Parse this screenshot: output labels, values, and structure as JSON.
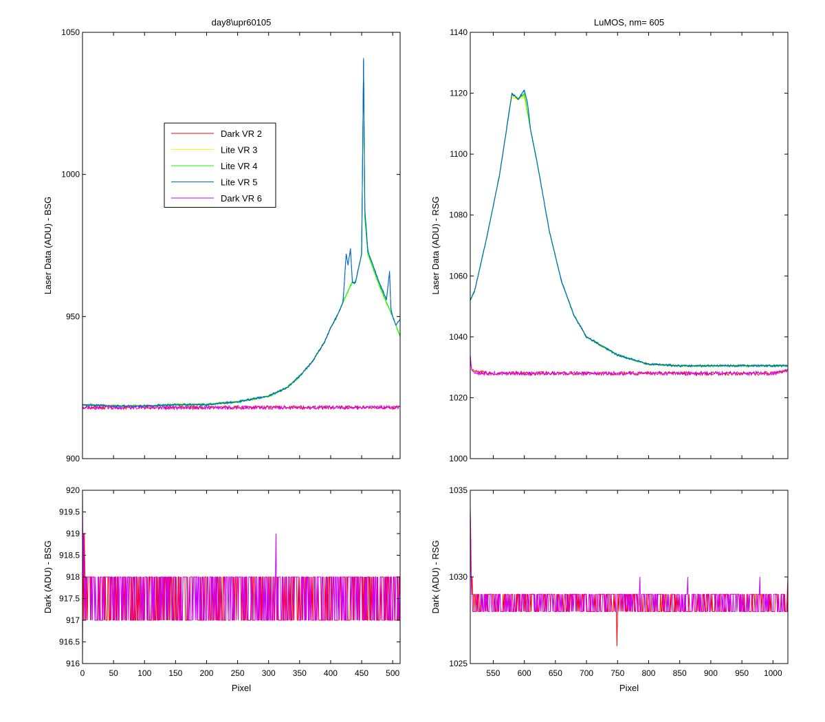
{
  "figure": {
    "background": "#ffffff"
  },
  "chart_data": [
    {
      "id": "top_left",
      "type": "line",
      "title": "day8\\upr60105",
      "xlabel": "",
      "ylabel": "Laser Data (ADU) - BSG",
      "xlim": [
        0,
        512
      ],
      "ylim": [
        900,
        1050
      ],
      "xticks": [
        0,
        50,
        100,
        150,
        200,
        250,
        300,
        350,
        400,
        450,
        500
      ],
      "yticks": [
        900,
        950,
        1000,
        1050
      ],
      "show_xticklabels": false,
      "legend": {
        "placement": "upper-left-center",
        "entries": [
          "Dark VR 2",
          "Lite VR 3",
          "Lite VR 4",
          "Lite VR 5",
          "Dark VR 6"
        ]
      },
      "series": [
        {
          "name": "Dark VR 2",
          "color": "#ff0000",
          "x": [
            0,
            100,
            200,
            300,
            400,
            512
          ],
          "y": [
            918,
            918,
            918,
            918,
            918,
            918
          ]
        },
        {
          "name": "Lite VR 3",
          "color": "#ffff00",
          "x": [
            0,
            50,
            100,
            150,
            200,
            250,
            300,
            330,
            350,
            370,
            390,
            400,
            410,
            420,
            430,
            435,
            440,
            450,
            453,
            455,
            460,
            470,
            480,
            490,
            500,
            505,
            512
          ],
          "y": [
            919,
            918.5,
            918.5,
            919,
            919,
            920,
            922,
            925,
            929,
            934,
            941,
            946,
            950,
            955,
            960,
            962,
            962,
            972,
            1040,
            985,
            972,
            966,
            960,
            955,
            950,
            947,
            943
          ]
        },
        {
          "name": "Lite VR 4",
          "color": "#00ff00",
          "x": [
            0,
            50,
            100,
            150,
            200,
            250,
            300,
            330,
            350,
            370,
            390,
            400,
            410,
            420,
            430,
            435,
            440,
            450,
            453,
            455,
            460,
            470,
            480,
            490,
            500,
            505,
            512
          ],
          "y": [
            919,
            918.5,
            918.5,
            919,
            919,
            920,
            922,
            925,
            929,
            934,
            941,
            946,
            950,
            955,
            960,
            962,
            962,
            972,
            1040,
            985,
            972,
            966,
            960,
            955,
            950,
            947,
            943
          ]
        },
        {
          "name": "Lite VR 5",
          "color": "#0066cc",
          "x": [
            0,
            50,
            100,
            150,
            200,
            250,
            300,
            330,
            350,
            370,
            390,
            400,
            410,
            420,
            425,
            428,
            432,
            435,
            440,
            450,
            453,
            455,
            460,
            470,
            480,
            490,
            495,
            497,
            500,
            505,
            512
          ],
          "y": [
            919,
            918.5,
            918.5,
            919,
            919,
            920,
            922,
            925,
            929,
            934,
            941,
            946,
            950,
            955,
            972,
            968,
            974,
            962,
            962,
            972,
            1041,
            988,
            973,
            967,
            961,
            956,
            966,
            953,
            950,
            947,
            949
          ]
        },
        {
          "name": "Dark VR 6",
          "color": "#cc00ff",
          "x": [
            0,
            100,
            200,
            300,
            400,
            512
          ],
          "y": [
            918,
            918,
            918,
            918,
            918,
            918
          ]
        }
      ]
    },
    {
      "id": "top_right",
      "type": "line",
      "title": "LuMOS, nm= 605",
      "xlabel": "",
      "ylabel": "Laser Data (ADU) - RSG",
      "xlim": [
        513,
        1024
      ],
      "ylim": [
        1000,
        1140
      ],
      "xticks": [
        550,
        600,
        650,
        700,
        750,
        800,
        850,
        900,
        950,
        1000
      ],
      "yticks": [
        1000,
        1020,
        1040,
        1060,
        1080,
        1100,
        1120,
        1140
      ],
      "show_xticklabels": false,
      "series": [
        {
          "name": "Dark VR 2",
          "color": "#ff0000",
          "x": [
            513,
            515,
            520,
            550,
            600,
            650,
            700,
            750,
            800,
            850,
            900,
            950,
            1000,
            1024
          ],
          "y": [
            1034,
            1029,
            1028.5,
            1028,
            1028,
            1028,
            1028,
            1028,
            1028,
            1028,
            1028,
            1028,
            1028,
            1029
          ]
        },
        {
          "name": "Lite VR 3",
          "color": "#ffff00",
          "x": [
            513,
            520,
            540,
            560,
            575,
            580,
            590,
            600,
            610,
            620,
            640,
            660,
            680,
            700,
            750,
            800,
            850,
            900,
            950,
            1000,
            1024
          ],
          "y": [
            1052,
            1055,
            1073,
            1093,
            1113,
            1119,
            1118,
            1119,
            1108,
            1098,
            1075,
            1058,
            1047,
            1040,
            1034,
            1031,
            1030.5,
            1030.5,
            1030.5,
            1030.5,
            1030.5
          ]
        },
        {
          "name": "Lite VR 4",
          "color": "#00ff00",
          "x": [
            513,
            520,
            540,
            560,
            575,
            580,
            590,
            600,
            610,
            620,
            640,
            660,
            680,
            700,
            750,
            800,
            850,
            900,
            950,
            1000,
            1024
          ],
          "y": [
            1052,
            1055,
            1073,
            1093,
            1113,
            1120,
            1118,
            1120,
            1108,
            1098,
            1075,
            1058,
            1047,
            1040,
            1034,
            1031,
            1030.5,
            1030.5,
            1030.5,
            1030.5,
            1030.5
          ]
        },
        {
          "name": "Lite VR 5",
          "color": "#0066cc",
          "x": [
            513,
            520,
            540,
            560,
            575,
            580,
            590,
            600,
            605,
            610,
            620,
            640,
            660,
            680,
            700,
            750,
            800,
            850,
            900,
            950,
            1000,
            1024
          ],
          "y": [
            1052,
            1055,
            1073,
            1093,
            1113,
            1120,
            1118,
            1121,
            1117,
            1108,
            1098,
            1075,
            1058,
            1047,
            1040,
            1034,
            1031,
            1030.5,
            1030.5,
            1030.5,
            1030.5,
            1030.5
          ]
        },
        {
          "name": "Dark VR 6",
          "color": "#cc00ff",
          "x": [
            513,
            515,
            520,
            550,
            600,
            650,
            700,
            750,
            800,
            850,
            900,
            950,
            1000,
            1024
          ],
          "y": [
            1034,
            1029,
            1028,
            1028,
            1028,
            1028,
            1028,
            1028,
            1028,
            1028,
            1028,
            1028,
            1028,
            1029
          ]
        }
      ]
    },
    {
      "id": "bottom_left",
      "type": "line",
      "title": "",
      "xlabel": "Pixel",
      "ylabel": "Dark (ADU) - BSG",
      "xlim": [
        0,
        512
      ],
      "ylim": [
        916,
        920
      ],
      "xticks": [
        0,
        50,
        100,
        150,
        200,
        250,
        300,
        350,
        400,
        450,
        500
      ],
      "yticks": [
        916,
        916.5,
        917,
        917.5,
        918,
        918.5,
        919,
        919.5,
        920
      ],
      "ytick_labels": [
        "916",
        "916.5",
        "917",
        "917.5",
        "918",
        "918.5",
        "919",
        "919.5",
        "920"
      ],
      "show_xticklabels": true,
      "noise": {
        "low": 917,
        "high": 918
      },
      "series": [
        {
          "name": "Dark VR 2",
          "color": "#ff0000",
          "x": [
            0,
            1,
            2,
            3,
            4,
            5,
            6,
            512
          ],
          "y": [
            916,
            919,
            917,
            919,
            918,
            917,
            918,
            917.5
          ]
        },
        {
          "name": "Dark VR 6",
          "color": "#cc00ff",
          "x": [
            0,
            1,
            2,
            3,
            5,
            6,
            311,
            312,
            313,
            314,
            512
          ],
          "y": [
            920,
            918,
            919,
            917,
            918,
            917,
            918,
            919,
            917,
            918,
            917.5
          ]
        }
      ]
    },
    {
      "id": "bottom_right",
      "type": "line",
      "title": "",
      "xlabel": "Pixel",
      "ylabel": "Dark (ADU) - RSG",
      "xlim": [
        513,
        1024
      ],
      "ylim": [
        1025,
        1035
      ],
      "xticks": [
        550,
        600,
        650,
        700,
        750,
        800,
        850,
        900,
        950,
        1000
      ],
      "yticks": [
        1025,
        1030,
        1035
      ],
      "show_xticklabels": true,
      "noise": {
        "low": 1028,
        "high": 1029
      },
      "series": [
        {
          "name": "Dark VR 2",
          "color": "#ff0000",
          "x": [
            513,
            514,
            516,
            518,
            748,
            749,
            750,
            1024
          ],
          "y": [
            1034,
            1032,
            1030,
            1029,
            1028,
            1026,
            1028,
            1030
          ]
        },
        {
          "name": "Dark VR 6",
          "color": "#cc00ff",
          "x": [
            513,
            514,
            516,
            518,
            785,
            786,
            787,
            862,
            863,
            864,
            978,
            979,
            980,
            1024
          ],
          "y": [
            1034,
            1031,
            1029,
            1028,
            1029,
            1030,
            1028,
            1029,
            1030,
            1028,
            1029,
            1030,
            1028,
            1029
          ]
        }
      ]
    }
  ]
}
